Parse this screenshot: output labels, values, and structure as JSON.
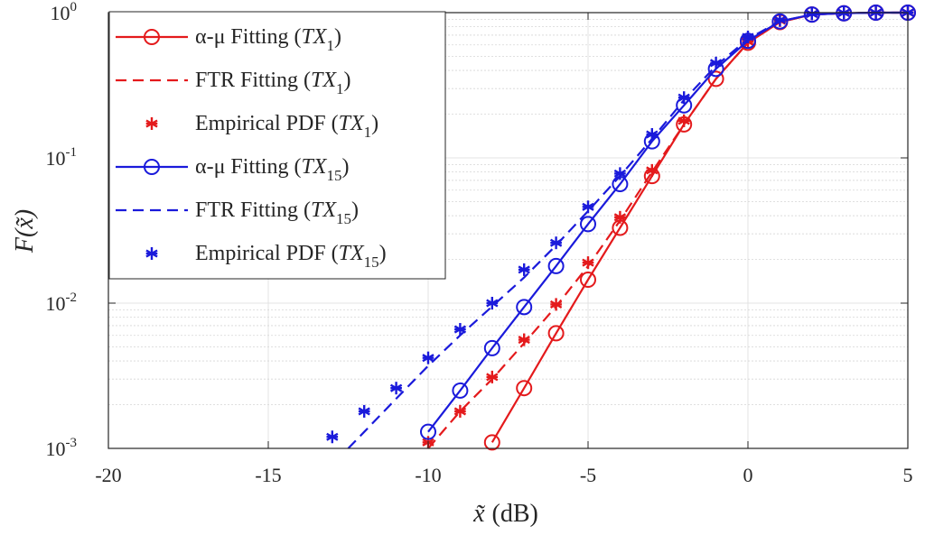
{
  "chart_data": {
    "type": "line",
    "xlabel_italic": "x̃",
    "xlabel_unit": "(dB)",
    "ylabel": "F(x̃)",
    "xlim": [
      -20,
      5
    ],
    "ylim": [
      0.001,
      1
    ],
    "yscale": "log",
    "grid": true,
    "xticks": [
      "-20",
      "-15",
      "-10",
      "-5",
      "0",
      "5"
    ],
    "yticks": [
      {
        "base": "10",
        "exp": "-3",
        "value": 0.001
      },
      {
        "base": "10",
        "exp": "-2",
        "value": 0.01
      },
      {
        "base": "10",
        "exp": "-1",
        "value": 0.1
      },
      {
        "base": "10",
        "exp": "0",
        "value": 1
      }
    ],
    "legend_position": "top-left",
    "series": [
      {
        "name_prefix": "α-μ  Fitting (",
        "name_tx": "TX",
        "name_sub": "1",
        "name_suffix": ")",
        "color": "#e41a1c",
        "line": "solid",
        "marker": "circle",
        "x": [
          -8,
          -7,
          -6,
          -5,
          -4,
          -3,
          -2,
          -1,
          0,
          1,
          2,
          3,
          4,
          5
        ],
        "y": [
          0.0011,
          0.0026,
          0.0062,
          0.0145,
          0.033,
          0.075,
          0.17,
          0.35,
          0.62,
          0.86,
          0.97,
          0.99,
          1.0,
          1.0
        ]
      },
      {
        "name_prefix": "FTR  Fitting (",
        "name_tx": "TX",
        "name_sub": "1",
        "name_suffix": ")",
        "color": "#e41a1c",
        "line": "dashed",
        "marker": "none",
        "x": [
          -10,
          -9,
          -8,
          -7,
          -6,
          -5,
          -4,
          -3,
          -2,
          -1,
          0,
          1,
          2,
          3,
          4,
          5
        ],
        "y": [
          0.001,
          0.0018,
          0.003,
          0.0053,
          0.0095,
          0.018,
          0.037,
          0.08,
          0.17,
          0.35,
          0.62,
          0.86,
          0.97,
          0.99,
          1.0,
          1.0
        ]
      },
      {
        "name_prefix": "Empirical PDF (",
        "name_tx": "TX",
        "name_sub": "1",
        "name_suffix": ")",
        "color": "#e41a1c",
        "line": "none",
        "marker": "asterisk",
        "x": [
          -10,
          -9,
          -8,
          -7,
          -6,
          -5,
          -4,
          -3,
          -2,
          0,
          1,
          2,
          3,
          4,
          5
        ],
        "y": [
          0.0011,
          0.0018,
          0.0031,
          0.0056,
          0.0098,
          0.019,
          0.039,
          0.082,
          0.18,
          0.63,
          0.88,
          0.98,
          0.995,
          1.0,
          1.0
        ]
      },
      {
        "name_prefix": "α-μ  Fitting (",
        "name_tx": "TX",
        "name_sub": "15",
        "name_suffix": ")",
        "color": "#1a1adb",
        "line": "solid",
        "marker": "circle",
        "x": [
          -10,
          -9,
          -8,
          -7,
          -6,
          -5,
          -4,
          -3,
          -2,
          -1,
          0,
          1,
          2,
          3,
          4,
          5
        ],
        "y": [
          0.0013,
          0.0025,
          0.0049,
          0.0094,
          0.018,
          0.035,
          0.066,
          0.13,
          0.23,
          0.41,
          0.64,
          0.87,
          0.97,
          0.99,
          1.0,
          1.0
        ]
      },
      {
        "name_prefix": "FTR Fitting (",
        "name_tx": "TX",
        "name_sub": "15",
        "name_suffix": ")",
        "color": "#1a1adb",
        "line": "dashed",
        "marker": "none",
        "x": [
          -12.5,
          -12,
          -11,
          -10,
          -9,
          -8,
          -7,
          -6,
          -5,
          -4,
          -3,
          -2,
          -1,
          0,
          1,
          2,
          3,
          4,
          5
        ],
        "y": [
          0.001,
          0.0013,
          0.0022,
          0.0037,
          0.006,
          0.0095,
          0.015,
          0.025,
          0.043,
          0.075,
          0.135,
          0.25,
          0.43,
          0.66,
          0.87,
          0.97,
          0.99,
          1.0,
          1.0
        ]
      },
      {
        "name_prefix": "Empirical PDF (",
        "name_tx": "TX",
        "name_sub": "15",
        "name_suffix": ")",
        "color": "#1a1adb",
        "line": "none",
        "marker": "asterisk",
        "x": [
          -13,
          -12,
          -11,
          -10,
          -9,
          -8,
          -7,
          -6,
          -5,
          -4,
          -3,
          -2,
          -1,
          0,
          1,
          2,
          3,
          4,
          5
        ],
        "y": [
          0.0012,
          0.0018,
          0.0026,
          0.0042,
          0.0066,
          0.01,
          0.017,
          0.026,
          0.046,
          0.078,
          0.145,
          0.26,
          0.45,
          0.68,
          0.89,
          0.98,
          0.995,
          1.0,
          1.0
        ]
      }
    ]
  }
}
